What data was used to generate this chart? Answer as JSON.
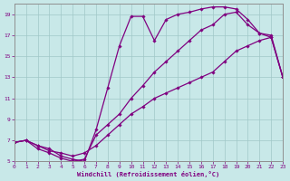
{
  "bg_color": "#c8e8e8",
  "grid_color": "#a0c8c8",
  "line_color": "#800080",
  "xlim": [
    0,
    23
  ],
  "ylim": [
    5,
    20
  ],
  "xticks": [
    0,
    1,
    2,
    3,
    4,
    5,
    6,
    7,
    8,
    9,
    10,
    11,
    12,
    13,
    14,
    15,
    16,
    17,
    18,
    19,
    20,
    21,
    22,
    23
  ],
  "yticks": [
    5,
    7,
    9,
    11,
    13,
    15,
    17,
    19
  ],
  "xlabel": "Windchill (Refroidissement éolien,°C)",
  "series": [
    {
      "x": [
        0,
        1,
        2,
        3,
        4,
        5,
        6,
        7,
        8,
        9,
        10,
        11,
        12,
        13,
        14,
        15,
        16,
        17,
        18,
        19,
        20,
        21,
        22,
        23
      ],
      "y": [
        6.8,
        7.0,
        6.5,
        6.2,
        5.5,
        5.2,
        5.0,
        8.0,
        12.0,
        16.0,
        18.8,
        18.8,
        16.5,
        18.5,
        19.0,
        19.2,
        19.5,
        19.7,
        19.7,
        19.5,
        18.5,
        17.2,
        17.0,
        13.0
      ]
    },
    {
      "x": [
        0,
        1,
        2,
        3,
        4,
        5,
        6,
        7,
        8,
        9,
        10,
        11,
        12,
        13,
        14,
        15,
        16,
        17,
        18,
        19,
        20,
        21,
        22,
        23
      ],
      "y": [
        6.8,
        7.0,
        6.2,
        5.8,
        5.3,
        5.0,
        5.2,
        7.5,
        8.5,
        9.5,
        11.0,
        12.2,
        13.5,
        14.5,
        15.5,
        16.5,
        17.5,
        18.0,
        19.0,
        19.2,
        18.0,
        17.2,
        16.8,
        13.0
      ]
    },
    {
      "x": [
        0,
        1,
        2,
        3,
        4,
        5,
        6,
        7,
        8,
        9,
        10,
        11,
        12,
        13,
        14,
        15,
        16,
        17,
        18,
        19,
        20,
        21,
        22,
        23
      ],
      "y": [
        6.8,
        7.0,
        6.5,
        6.0,
        5.8,
        5.5,
        5.8,
        6.5,
        7.5,
        8.5,
        9.5,
        10.2,
        11.0,
        11.5,
        12.0,
        12.5,
        13.0,
        13.5,
        14.5,
        15.5,
        16.0,
        16.5,
        16.8,
        13.0
      ]
    }
  ]
}
